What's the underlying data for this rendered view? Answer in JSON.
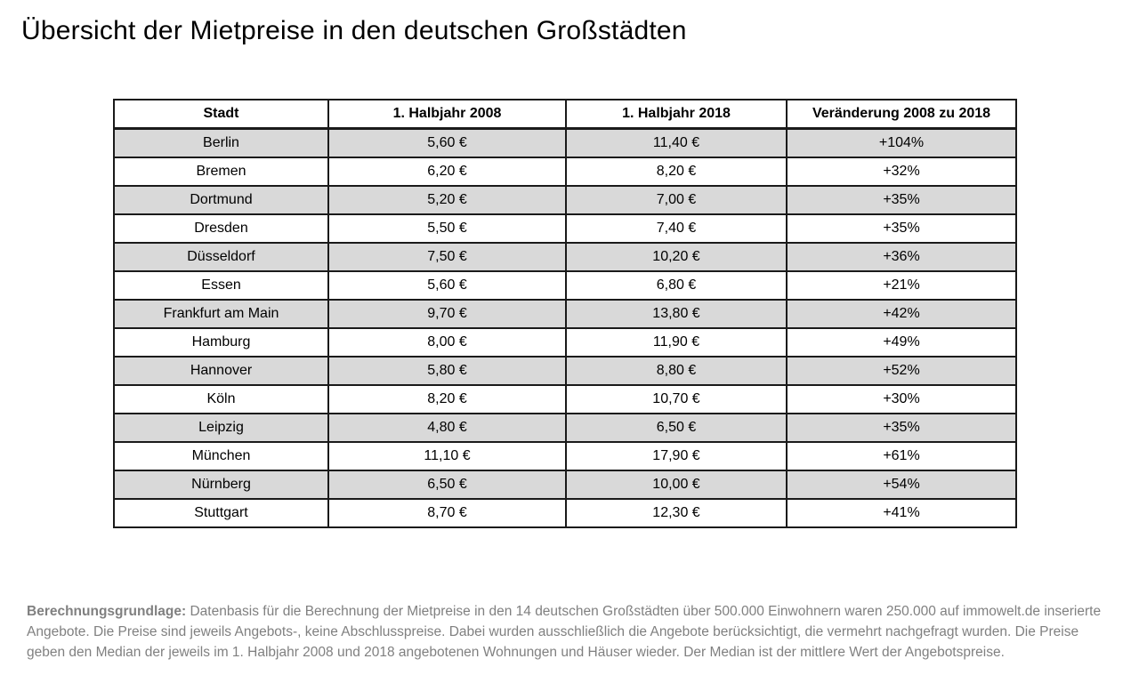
{
  "page_title": "Übersicht der Mietpreise in den deutschen Großstädten",
  "chart_data": {
    "type": "table",
    "title": "Übersicht der Mietpreise in den deutschen Großstädten",
    "columns": [
      "Stadt",
      "1. Halbjahr 2008",
      "1. Halbjahr 2018",
      "Veränderung 2008 zu 2018"
    ],
    "rows": [
      [
        "Berlin",
        "5,60 €",
        "11,40 €",
        "+104%"
      ],
      [
        "Bremen",
        "6,20 €",
        "8,20 €",
        "+32%"
      ],
      [
        "Dortmund",
        "5,20 €",
        "7,00 €",
        "+35%"
      ],
      [
        "Dresden",
        "5,50 €",
        "7,40 €",
        "+35%"
      ],
      [
        "Düsseldorf",
        "7,50 €",
        "10,20 €",
        "+36%"
      ],
      [
        "Essen",
        "5,60 €",
        "6,80 €",
        "+21%"
      ],
      [
        "Frankfurt am Main",
        "9,70 €",
        "13,80 €",
        "+42%"
      ],
      [
        "Hamburg",
        "8,00 €",
        "11,90 €",
        "+49%"
      ],
      [
        "Hannover",
        "5,80 €",
        "8,80 €",
        "+52%"
      ],
      [
        "Köln",
        "8,20 €",
        "10,70 €",
        "+30%"
      ],
      [
        "Leipzig",
        "4,80 €",
        "6,50 €",
        "+35%"
      ],
      [
        "München",
        "11,10 €",
        "17,90 €",
        "+61%"
      ],
      [
        "Nürnberg",
        "6,50 €",
        "10,00 €",
        "+54%"
      ],
      [
        "Stuttgart",
        "8,70 €",
        "12,30 €",
        "+41%"
      ]
    ],
    "values": {
      "cities": [
        "Berlin",
        "Bremen",
        "Dortmund",
        "Dresden",
        "Düsseldorf",
        "Essen",
        "Frankfurt am Main",
        "Hamburg",
        "Hannover",
        "Köln",
        "Leipzig",
        "München",
        "Nürnberg",
        "Stuttgart"
      ],
      "price_2008_eur": [
        5.6,
        6.2,
        5.2,
        5.5,
        7.5,
        5.6,
        9.7,
        8.0,
        5.8,
        8.2,
        4.8,
        11.1,
        6.5,
        8.7
      ],
      "price_2018_eur": [
        11.4,
        8.2,
        7.0,
        7.4,
        10.2,
        6.8,
        13.8,
        11.9,
        8.8,
        10.7,
        6.5,
        17.9,
        10.0,
        12.3
      ],
      "change_percent": [
        104,
        32,
        35,
        35,
        36,
        21,
        42,
        49,
        52,
        30,
        35,
        61,
        54,
        41
      ]
    },
    "layout": {
      "stripe_rows": "even rows (Berlin first) shaded",
      "stripe_color": "#d9d9d9",
      "border_color": "#1a1a1a"
    }
  },
  "footnote": {
    "label": "Berechnungsgrundlage:",
    "text": "Datenbasis für die Berechnung der Mietpreise in den 14 deutschen Großstädten über 500.000 Einwohnern waren 250.000 auf immowelt.de inserierte Angebote. Die Preise sind jeweils Angebots-, keine Abschlusspreise. Dabei wurden ausschließlich die Angebote berücksichtigt, die vermehrt nachgefragt wurden. Die Preise geben den Median der jeweils im 1. Halbjahr 2008 und 2018 angebotenen Wohnungen und Häuser wieder. Der Median ist der mittlere Wert der Angebotspreise."
  }
}
